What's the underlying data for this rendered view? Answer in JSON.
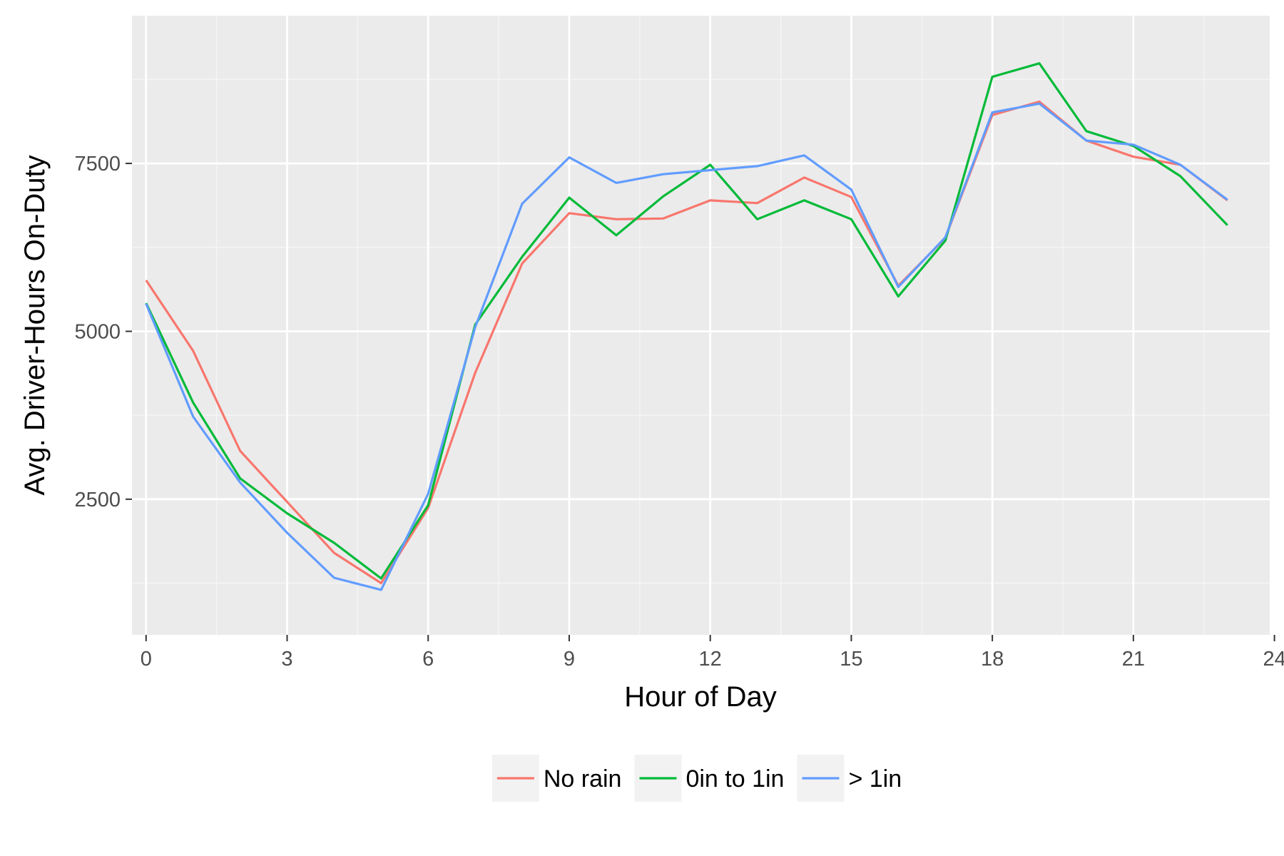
{
  "chart_data": {
    "type": "line",
    "title": "",
    "xlabel": "Hour of Day",
    "ylabel": "Avg. Driver-Hours On-Duty",
    "xlim": [
      -0.3,
      23.9
    ],
    "ylim": [
      480,
      9700
    ],
    "x_ticks": [
      0,
      3,
      6,
      9,
      12,
      15,
      18,
      21,
      24
    ],
    "x_tick_labels": [
      "0",
      "3",
      "6",
      "9",
      "12",
      "15",
      "18",
      "21",
      "24"
    ],
    "y_ticks": [
      2500,
      5000,
      7500
    ],
    "y_tick_labels": [
      "2500",
      "5000",
      "7500"
    ],
    "grid": true,
    "legend_position": "bottom",
    "x": [
      0,
      1,
      2,
      3,
      4,
      5,
      6,
      7,
      8,
      9,
      10,
      11,
      12,
      13,
      14,
      15,
      16,
      17,
      18,
      19,
      20,
      21,
      22,
      23
    ],
    "series": [
      {
        "name": "No rain",
        "color": "#F8766D",
        "values": [
          5760,
          4710,
          3220,
          2460,
          1700,
          1250,
          2370,
          4380,
          6010,
          6760,
          6670,
          6680,
          6950,
          6910,
          7290,
          7000,
          5680,
          6390,
          8220,
          8420,
          7840,
          7600,
          7480,
          6950
        ]
      },
      {
        "name": "0in to 1in",
        "color": "#00BA38",
        "values": [
          5420,
          3940,
          2810,
          2290,
          1850,
          1320,
          2410,
          5100,
          6110,
          6990,
          6430,
          7010,
          7480,
          6670,
          6950,
          6670,
          5520,
          6350,
          8790,
          8990,
          7980,
          7760,
          7310,
          6580
        ]
      },
      {
        "name": "> 1in",
        "color": "#619CFF",
        "values": [
          5410,
          3730,
          2750,
          2000,
          1330,
          1150,
          2580,
          5060,
          6900,
          7590,
          7210,
          7340,
          7400,
          7460,
          7620,
          7110,
          5660,
          6400,
          8260,
          8390,
          7840,
          7780,
          7480,
          6960
        ]
      }
    ]
  }
}
